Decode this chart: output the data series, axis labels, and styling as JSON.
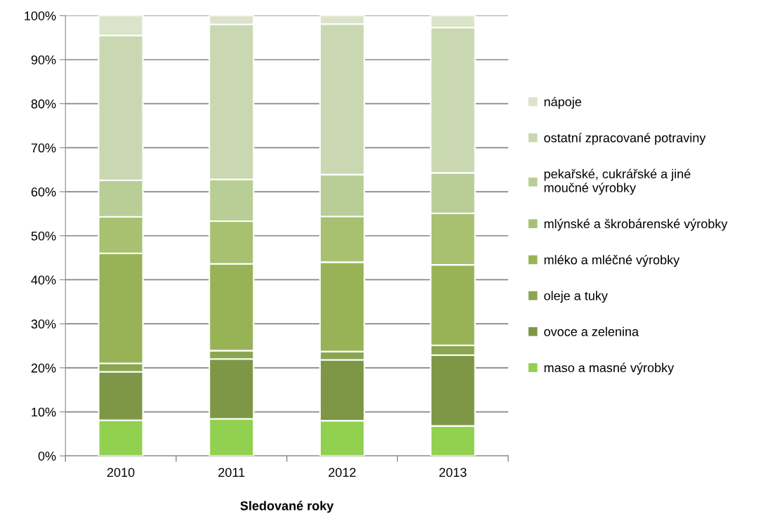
{
  "chart_data": {
    "type": "bar",
    "stacked": true,
    "xlabel": "Sledované roky",
    "categories": [
      "2010",
      "2011",
      "2012",
      "2013"
    ],
    "series": [
      {
        "name": "maso a masné výrobky",
        "color": "#92d050",
        "values": [
          8.1,
          8.4,
          8.0,
          6.8
        ]
      },
      {
        "name": "ovoce a zelenina",
        "color": "#7e9746",
        "values": [
          11.0,
          13.6,
          13.8,
          16.1
        ]
      },
      {
        "name": "oleje a tuky",
        "color": "#8aa650",
        "values": [
          1.9,
          1.9,
          1.9,
          2.2
        ]
      },
      {
        "name": "mléko a mléčné výrobky",
        "color": "#98b356",
        "values": [
          25.0,
          19.7,
          20.3,
          18.3
        ]
      },
      {
        "name": "mlýnské a škrobárenské výrobky",
        "color": "#a7c170",
        "values": [
          8.3,
          9.7,
          10.4,
          11.7
        ]
      },
      {
        "name": "pekařské, cukrářské a jiné moučné výrobky",
        "color": "#b9cd96",
        "values": [
          8.3,
          9.5,
          9.5,
          9.2
        ]
      },
      {
        "name": "ostatní zpracované potraviny",
        "color": "#c9d8b1",
        "values": [
          32.9,
          35.2,
          34.2,
          33.0
        ]
      },
      {
        "name": "nápoje",
        "color": "#dbe4ca",
        "values": [
          4.5,
          2.0,
          1.9,
          2.7
        ]
      }
    ],
    "ylim": [
      0,
      100
    ],
    "yticks": [
      {
        "value": 0,
        "label": "0%"
      },
      {
        "value": 10,
        "label": "10%"
      },
      {
        "value": 20,
        "label": "20%"
      },
      {
        "value": 30,
        "label": "30%"
      },
      {
        "value": 40,
        "label": "40%"
      },
      {
        "value": 50,
        "label": "50%"
      },
      {
        "value": 60,
        "label": "60%"
      },
      {
        "value": 70,
        "label": "70%"
      },
      {
        "value": 80,
        "label": "80%"
      },
      {
        "value": 90,
        "label": "90%"
      },
      {
        "value": 100,
        "label": "100%"
      }
    ],
    "grid": "y",
    "legend": "right"
  }
}
